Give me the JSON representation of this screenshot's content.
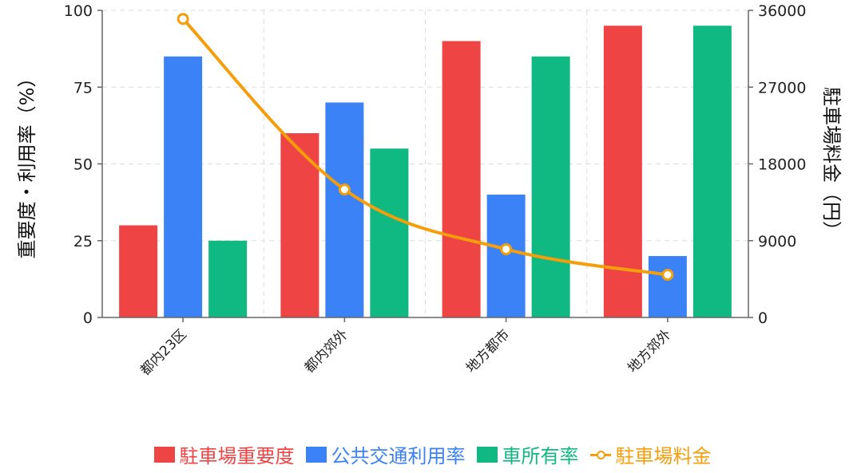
{
  "chart_data": {
    "type": "bar",
    "categories": [
      "都内23区",
      "都内郊外",
      "地方都市",
      "地方郊外"
    ],
    "series": [
      {
        "name": "駐車場重要度",
        "type": "bar",
        "axis": "left",
        "color": "#ef4444",
        "values": [
          30,
          60,
          90,
          95
        ]
      },
      {
        "name": "公共交通利用率",
        "type": "bar",
        "axis": "left",
        "color": "#3b82f6",
        "values": [
          85,
          70,
          40,
          20
        ]
      },
      {
        "name": "車所有率",
        "type": "bar",
        "axis": "left",
        "color": "#10b981",
        "values": [
          25,
          55,
          85,
          95
        ]
      },
      {
        "name": "駐車場料金",
        "type": "line",
        "axis": "right",
        "color": "#f59e0b",
        "values": [
          35000,
          15000,
          8000,
          5000
        ]
      }
    ],
    "ylabel": "重要度・利用率（%）",
    "y2label": "駐車場料金（円）",
    "ylim": [
      0,
      100
    ],
    "y2lim": [
      0,
      36000
    ],
    "yticks": [
      "0",
      "25",
      "50",
      "75",
      "100"
    ],
    "y2ticks": [
      "0",
      "9000",
      "18000",
      "27000",
      "36000"
    ],
    "grid": true,
    "legend_position": "bottom"
  }
}
